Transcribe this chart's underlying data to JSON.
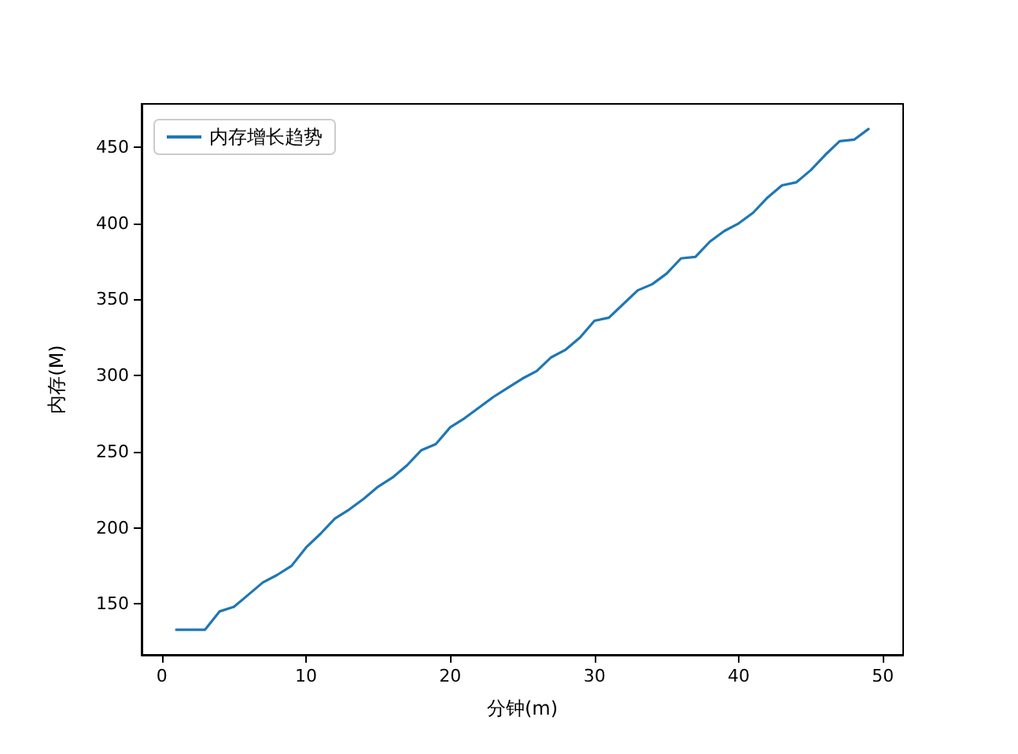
{
  "chart_data": {
    "type": "line",
    "xlabel": "分钟(m)",
    "ylabel": "内存(M)",
    "x": [
      1,
      2,
      3,
      4,
      5,
      6,
      7,
      8,
      9,
      10,
      11,
      12,
      13,
      14,
      15,
      16,
      17,
      18,
      19,
      20,
      21,
      22,
      23,
      24,
      25,
      26,
      27,
      28,
      29,
      30,
      31,
      32,
      33,
      34,
      35,
      36,
      37,
      38,
      39,
      40,
      41,
      42,
      43,
      44,
      45,
      46,
      47,
      48,
      49
    ],
    "series": [
      {
        "name": "内存增长趋势",
        "color": "#1f77b4",
        "values": [
          133,
          133,
          133,
          145,
          148,
          156,
          164,
          169,
          175,
          187,
          196,
          206,
          212,
          219,
          227,
          233,
          241,
          251,
          255,
          266,
          272,
          279,
          286,
          292,
          298,
          303,
          312,
          317,
          325,
          336,
          338,
          347,
          356,
          360,
          367,
          377,
          378,
          388,
          395,
          400,
          407,
          417,
          425,
          427,
          435,
          445,
          454,
          455,
          462
        ]
      }
    ],
    "xlim": [
      -1.4,
      51.4
    ],
    "ylim": [
      116.5,
      478.5
    ],
    "xticks": [
      0,
      10,
      20,
      30,
      40,
      50
    ],
    "yticks": [
      150,
      200,
      250,
      300,
      350,
      400,
      450
    ],
    "legend": "top left",
    "grid": false,
    "marker": "none",
    "line_style": "solid"
  }
}
